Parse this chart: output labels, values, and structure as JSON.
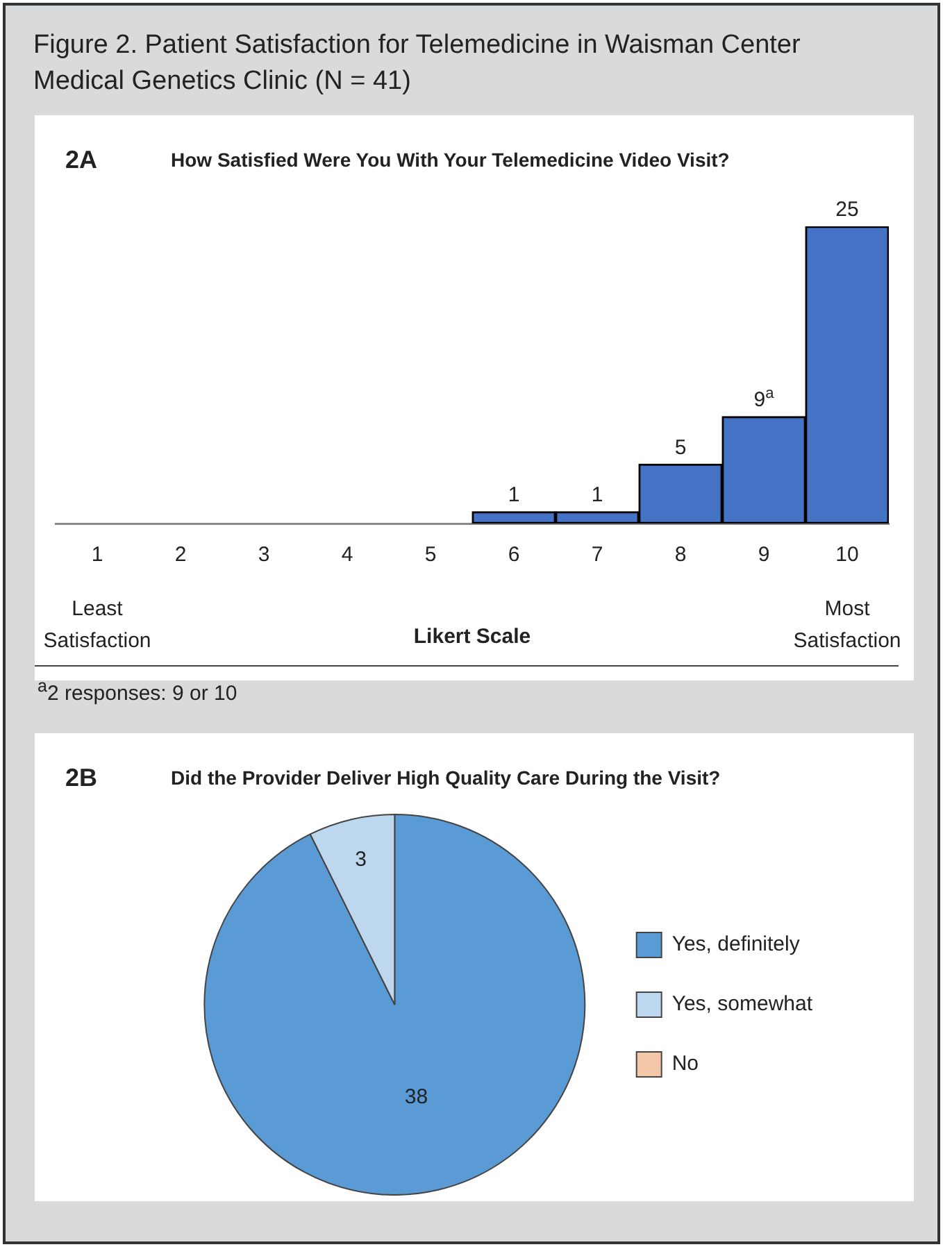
{
  "chart_data": [
    {
      "type": "bar",
      "title": "How Satisfied Were You With Your Telemedicine Video Visit?",
      "subtitle": "Figure 2. Patient Satisfaction for Telemedicine in Waisman Center Medical Genetics Clinic (N = 41)",
      "xlabel": "Likert Scale",
      "categories": [
        "1",
        "2",
        "3",
        "4",
        "5",
        "6",
        "7",
        "8",
        "9",
        "10"
      ],
      "values": [
        0,
        0,
        0,
        0,
        0,
        1,
        1,
        5,
        9,
        25
      ],
      "color": "#4472c4",
      "value_labels": [
        null,
        null,
        null,
        null,
        null,
        "1",
        "1",
        "5",
        "9$^{a}$",
        "25"
      ],
      "annotations": [
        "2A",
        "Least Satisfaction",
        "Most Satisfaction",
        "$^{a}$2 responses: 9 or 10"
      ],
      "legend": false
    },
    {
      "type": "pie",
      "title": "Did the Provider Deliver High Quality Care During the Visit?",
      "categories": [
        "Yes, definitely",
        "Yes, somewhat",
        "No"
      ],
      "values": [
        38,
        3,
        0
      ],
      "colors": [
        "#5b9bd5",
        "#bdd7ee",
        "#f4c7a8"
      ],
      "value_labels": [
        "38",
        "3",
        null
      ],
      "annotations": [
        "2B"
      ],
      "legend": "right"
    }
  ]
}
